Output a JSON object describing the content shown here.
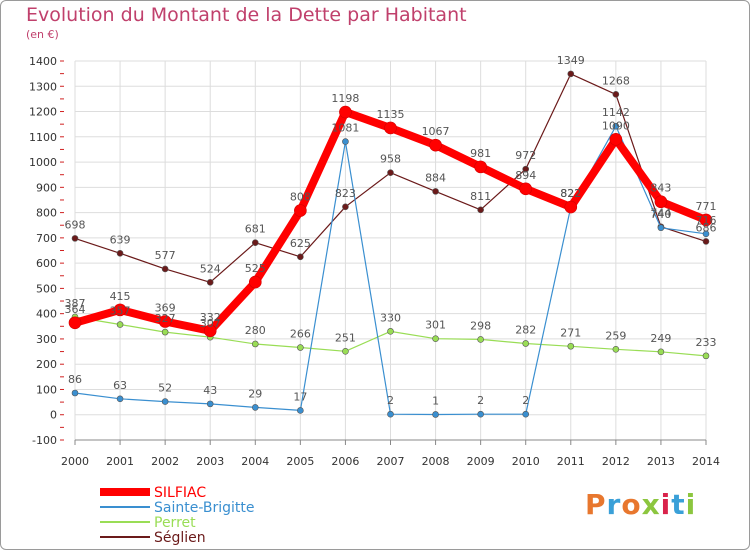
{
  "header": {
    "title": "Evolution du Montant de la Dette par Habitant",
    "subtitle": "(en €)"
  },
  "logo": {
    "text": "Proxiti",
    "colors": [
      "#e8772e",
      "#3aa0d8",
      "#e8772e",
      "#8cc63f",
      "#d9234b",
      "#3aa0d8",
      "#8cc63f"
    ]
  },
  "chart_data": {
    "type": "line",
    "x": [
      2000,
      2001,
      2002,
      2003,
      2004,
      2005,
      2006,
      2007,
      2008,
      2009,
      2010,
      2011,
      2012,
      2013,
      2014
    ],
    "ylim": [
      -100,
      1400
    ],
    "yticks": [
      -100,
      0,
      100,
      200,
      300,
      400,
      500,
      600,
      700,
      800,
      900,
      1000,
      1100,
      1200,
      1300,
      1400
    ],
    "grid": true,
    "legend_position": "bottom-left",
    "series": [
      {
        "name": "SILFIAC",
        "color": "#ff0000",
        "values": [
          364,
          415,
          369,
          332,
          525,
          808,
          1198,
          1135,
          1067,
          981,
          894,
          822,
          1090,
          843,
          771
        ]
      },
      {
        "name": "Sainte-Brigitte",
        "color": "#3a8fd0",
        "values": [
          86,
          63,
          52,
          43,
          29,
          17,
          1081,
          2,
          1,
          2,
          2,
          822,
          1142,
          740,
          716
        ]
      },
      {
        "name": "Perret",
        "color": "#99dd55",
        "values": [
          387,
          357,
          327,
          307,
          280,
          266,
          251,
          330,
          301,
          298,
          282,
          271,
          259,
          249,
          233
        ]
      },
      {
        "name": "Séglien",
        "color": "#6b1a1a",
        "values": [
          698,
          639,
          577,
          524,
          681,
          625,
          823,
          958,
          884,
          811,
          972,
          1349,
          1268,
          744,
          686
        ]
      }
    ]
  }
}
